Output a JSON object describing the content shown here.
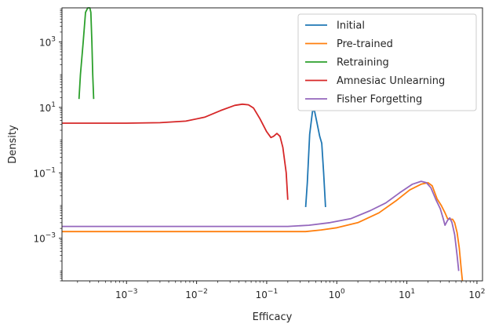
{
  "chart_data": {
    "type": "line",
    "title": "",
    "xlabel": "Efficacy",
    "ylabel": "Density",
    "xscale": "log",
    "yscale": "log",
    "xlim": [
      0.00012,
      120
    ],
    "ylim": [
      5e-05,
      11000
    ],
    "grid": false,
    "legend_position": "top-right",
    "x_ticks": [
      {
        "value": 0.001,
        "base": "10",
        "exp": "−3"
      },
      {
        "value": 0.01,
        "base": "10",
        "exp": "−2"
      },
      {
        "value": 0.1,
        "base": "10",
        "exp": "−1"
      },
      {
        "value": 1,
        "base": "10",
        "exp": "0"
      },
      {
        "value": 10,
        "base": "10",
        "exp": "1"
      },
      {
        "value": 100,
        "base": "10",
        "exp": "2"
      }
    ],
    "y_ticks": [
      {
        "value": 0.001,
        "base": "10",
        "exp": "−3"
      },
      {
        "value": 0.1,
        "base": "10",
        "exp": "−1"
      },
      {
        "value": 10,
        "base": "10",
        "exp": "1"
      },
      {
        "value": 1000,
        "base": "10",
        "exp": "3"
      }
    ],
    "series": [
      {
        "name": "Initial",
        "color": "#1f77b4",
        "points": [
          [
            0.36,
            0.009
          ],
          [
            0.38,
            0.05
          ],
          [
            0.41,
            1.5
          ],
          [
            0.45,
            7.5
          ],
          [
            0.48,
            8.0
          ],
          [
            0.52,
            3.5
          ],
          [
            0.57,
            1.3
          ],
          [
            0.61,
            0.8
          ],
          [
            0.65,
            0.1
          ],
          [
            0.69,
            0.009
          ]
        ]
      },
      {
        "name": "Pre-trained",
        "color": "#ff7f0e",
        "points": [
          [
            0.00012,
            0.0016
          ],
          [
            0.1,
            0.0016
          ],
          [
            0.2,
            0.0016
          ],
          [
            0.36,
            0.0016
          ],
          [
            0.6,
            0.0018
          ],
          [
            1,
            0.0021
          ],
          [
            2,
            0.003
          ],
          [
            4,
            0.006
          ],
          [
            7,
            0.014
          ],
          [
            11,
            0.03
          ],
          [
            16,
            0.045
          ],
          [
            20,
            0.05
          ],
          [
            23,
            0.04
          ],
          [
            27,
            0.016
          ],
          [
            31,
            0.01
          ],
          [
            35,
            0.006
          ],
          [
            38,
            0.004
          ],
          [
            42,
            0.0038
          ],
          [
            45,
            0.0038
          ],
          [
            48,
            0.003
          ],
          [
            52,
            0.0015
          ],
          [
            56,
            0.0005
          ],
          [
            60,
            0.0001
          ],
          [
            62,
            5e-05
          ]
        ]
      },
      {
        "name": "Retraining",
        "color": "#2ca02c",
        "points": [
          [
            0.00021,
            18
          ],
          [
            0.00022,
            100
          ],
          [
            0.00024,
            900
          ],
          [
            0.00026,
            8000
          ],
          [
            0.00028,
            13000
          ],
          [
            0.0003,
            13000
          ],
          [
            0.00031,
            8000
          ],
          [
            0.00032,
            1000
          ],
          [
            0.00033,
            100
          ],
          [
            0.00034,
            18
          ]
        ]
      },
      {
        "name": "Amnesiac Unlearning",
        "color": "#d62728",
        "points": [
          [
            0.00012,
            3.3
          ],
          [
            0.001,
            3.3
          ],
          [
            0.003,
            3.4
          ],
          [
            0.007,
            3.8
          ],
          [
            0.013,
            5
          ],
          [
            0.022,
            8
          ],
          [
            0.035,
            11.5
          ],
          [
            0.045,
            12.5
          ],
          [
            0.055,
            12
          ],
          [
            0.065,
            9.5
          ],
          [
            0.08,
            4.5
          ],
          [
            0.1,
            1.8
          ],
          [
            0.115,
            1.2
          ],
          [
            0.125,
            1.3
          ],
          [
            0.14,
            1.6
          ],
          [
            0.155,
            1.3
          ],
          [
            0.17,
            0.6
          ],
          [
            0.19,
            0.1
          ],
          [
            0.2,
            0.015
          ]
        ]
      },
      {
        "name": "Fisher Forgetting",
        "color": "#9467bd",
        "points": [
          [
            0.00012,
            0.0023
          ],
          [
            0.1,
            0.0023
          ],
          [
            0.2,
            0.0023
          ],
          [
            0.4,
            0.0025
          ],
          [
            0.8,
            0.003
          ],
          [
            1.6,
            0.004
          ],
          [
            3,
            0.007
          ],
          [
            5,
            0.012
          ],
          [
            8,
            0.025
          ],
          [
            12,
            0.045
          ],
          [
            16,
            0.055
          ],
          [
            19,
            0.05
          ],
          [
            22,
            0.035
          ],
          [
            26,
            0.015
          ],
          [
            30,
            0.008
          ],
          [
            33,
            0.004
          ],
          [
            35,
            0.0025
          ],
          [
            38,
            0.0035
          ],
          [
            41,
            0.0042
          ],
          [
            44,
            0.003
          ],
          [
            48,
            0.0013
          ],
          [
            52,
            0.0003
          ],
          [
            55,
            0.0001
          ]
        ]
      }
    ]
  }
}
